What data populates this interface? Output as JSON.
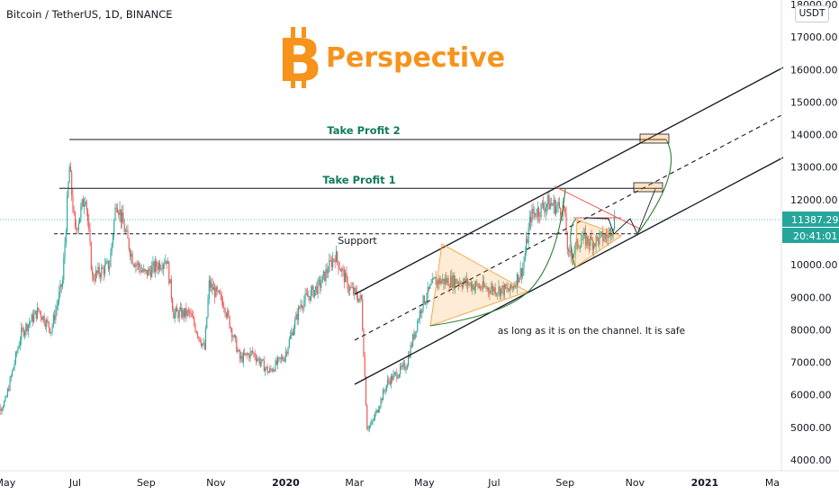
{
  "header": {
    "symbol_line": "Bitcoin / TetherUS, 1D, BINANCE"
  },
  "logo": {
    "text": "Perspective",
    "icon": "bitcoin-icon"
  },
  "currency_button": "USDT",
  "colors": {
    "up": "#26a69a",
    "down": "#ef5350",
    "accent": "#f7931a",
    "price_tag": "#26a69a",
    "tp_text": "#0f7b5a"
  },
  "price_tag": {
    "price": "11387.29",
    "countdown": "20:41:01"
  },
  "annotations": {
    "take_profit_1": "Take Profit 1",
    "take_profit_2": "Take Profit 2",
    "support": "Support",
    "note": "as long as it is on the channel. It is safe"
  },
  "chart_data": {
    "type": "candlestick",
    "title": "Bitcoin / TetherUS, 1D, BINANCE",
    "x_tick_labels": [
      "May",
      "Jul",
      "Sep",
      "Nov",
      "2020",
      "Mar",
      "May",
      "Jul",
      "Sep",
      "Nov",
      "2021",
      "Ma"
    ],
    "y_tick_labels": [
      "18000.00",
      "17000.00",
      "16000.00",
      "15000.00",
      "14000.00",
      "13000.00",
      "12000.00",
      "11000.00",
      "10000.00",
      "9000.00",
      "8000.00",
      "7000.00",
      "6000.00",
      "5000.00",
      "4000.00"
    ],
    "ylim": [
      3700,
      18100
    ],
    "levels": {
      "take_profit_1": 12350,
      "take_profit_2": 13850,
      "support": 10950,
      "last_price": 11387.29
    },
    "price_path": [
      [
        "2019-04-20",
        5300
      ],
      [
        "2019-05-01",
        5800
      ],
      [
        "2019-05-15",
        7900
      ],
      [
        "2019-05-30",
        8600
      ],
      [
        "2019-06-10",
        8000
      ],
      [
        "2019-06-20",
        9500
      ],
      [
        "2019-06-26",
        13000
      ],
      [
        "2019-07-01",
        11000
      ],
      [
        "2019-07-10",
        12200
      ],
      [
        "2019-07-16",
        9600
      ],
      [
        "2019-07-31",
        10000
      ],
      [
        "2019-08-06",
        12000
      ],
      [
        "2019-08-20",
        10200
      ],
      [
        "2019-08-31",
        9700
      ],
      [
        "2019-09-19",
        10200
      ],
      [
        "2019-09-25",
        8500
      ],
      [
        "2019-10-09",
        8500
      ],
      [
        "2019-10-22",
        7400
      ],
      [
        "2019-10-26",
        9400
      ],
      [
        "2019-11-08",
        8800
      ],
      [
        "2019-11-22",
        7100
      ],
      [
        "2019-12-03",
        7300
      ],
      [
        "2019-12-17",
        6700
      ],
      [
        "2019-12-31",
        7200
      ],
      [
        "2020-01-14",
        8800
      ],
      [
        "2020-01-31",
        9400
      ],
      [
        "2020-02-13",
        10300
      ],
      [
        "2020-02-25",
        9300
      ],
      [
        "2020-03-07",
        8900
      ],
      [
        "2020-03-12",
        5000
      ],
      [
        "2020-03-16",
        5100
      ],
      [
        "2020-03-30",
        6400
      ],
      [
        "2020-04-15",
        6900
      ],
      [
        "2020-04-29",
        8800
      ],
      [
        "2020-05-10",
        9500
      ],
      [
        "2020-05-31",
        9500
      ],
      [
        "2020-06-20",
        9300
      ],
      [
        "2020-07-15",
        9200
      ],
      [
        "2020-07-26",
        9900
      ],
      [
        "2020-08-02",
        11500
      ],
      [
        "2020-08-17",
        11900
      ],
      [
        "2020-08-31",
        11700
      ],
      [
        "2020-09-04",
        10200
      ],
      [
        "2020-09-15",
        10800
      ],
      [
        "2020-09-25",
        10700
      ],
      [
        "2020-10-09",
        10900
      ],
      [
        "2020-10-14",
        11400
      ]
    ]
  }
}
